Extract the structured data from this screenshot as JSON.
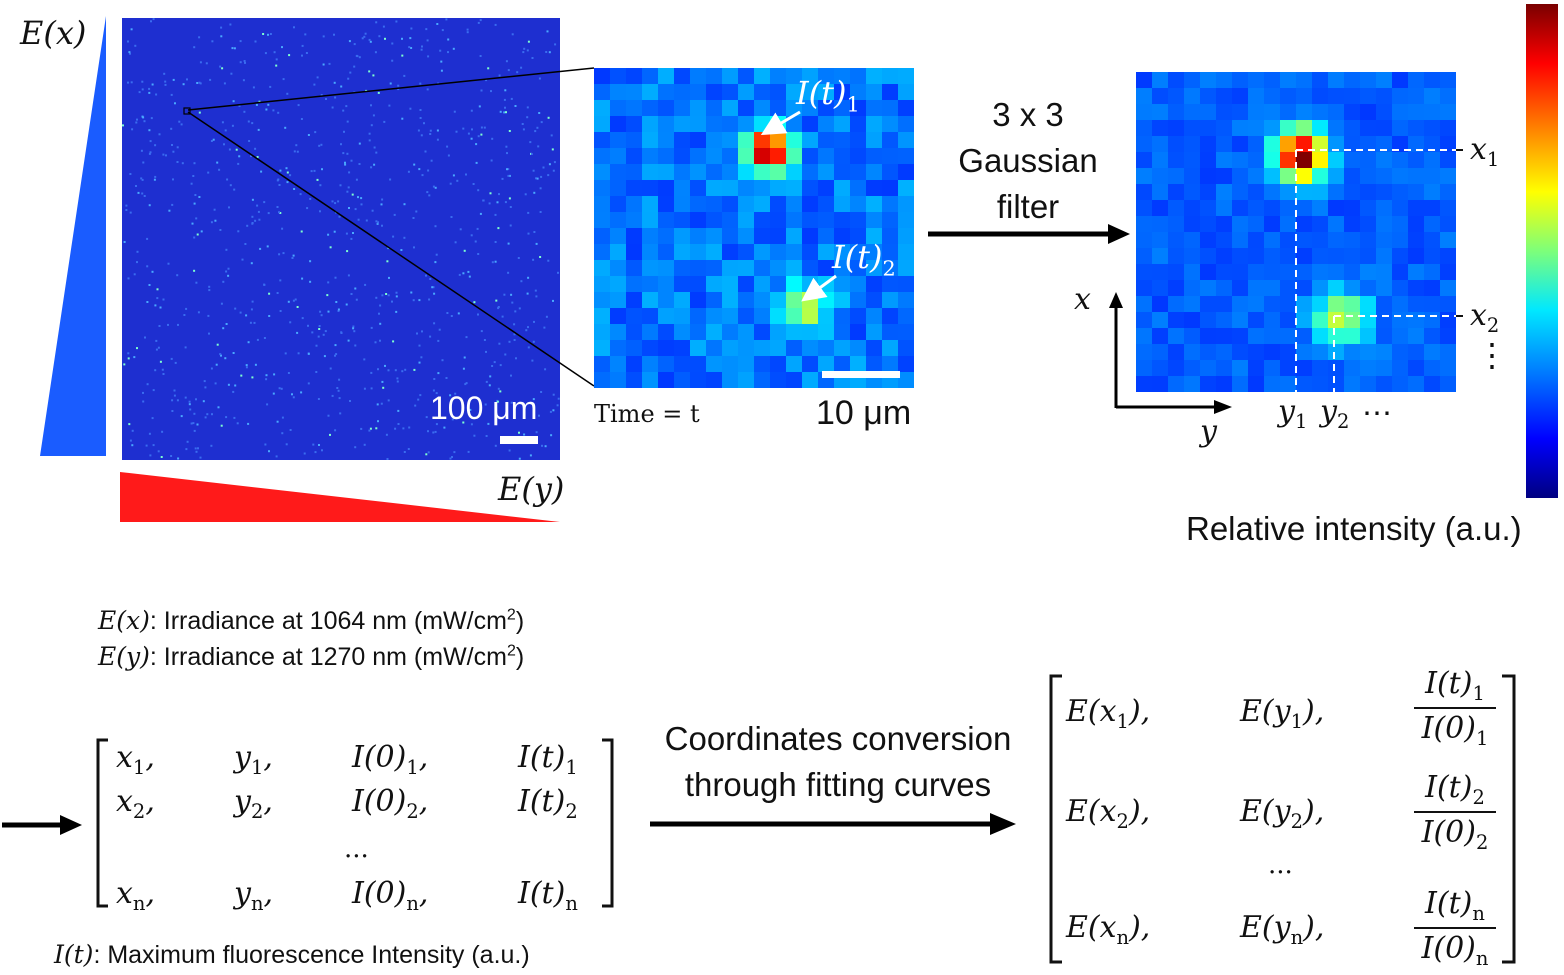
{
  "labels": {
    "ex_axis": "E(x)",
    "ey_axis": "E(y)",
    "scale_100": "100 μm",
    "time_label": "Time = t",
    "scale_10": "10 μm",
    "peak1": "I(t)",
    "peak1_sub": "1",
    "peak2": "I(t)",
    "peak2_sub": "2",
    "filter_line1": "3 x 3",
    "filter_line2": "Gaussian",
    "filter_line3": "filter",
    "axis_x": "x",
    "axis_y": "y",
    "x1": "x",
    "x1_sub": "1",
    "x2": "x",
    "x2_sub": "2",
    "y1": "y",
    "y1_sub": "1",
    "y2": "y",
    "y2_sub": "2",
    "dots_h": "⋯",
    "dots_v": "⋮",
    "colorbar_label": "Relative intensity (a.u.)"
  },
  "legend": {
    "ex_sym": "E(x)",
    "ex_text": ": Irradiance at 1064 nm (mW/cm",
    "ey_sym": "E(y)",
    "ey_text": ": Irradiance at 1270 nm (mW/cm",
    "sup2": "2",
    "close": ")",
    "it_sym": "I(t)",
    "it_text": ": Maximum fluorescence Intensity (a.u.)"
  },
  "conversion": {
    "line1": "Coordinates conversion",
    "line2": "through fitting curves"
  },
  "matrix_left": {
    "rows": [
      [
        "x",
        "1",
        "y",
        "1",
        "I(0)",
        "1",
        "I(t)",
        "1"
      ],
      [
        "x",
        "2",
        "y",
        "2",
        "I(0)",
        "2",
        "I(t)",
        "2"
      ],
      [
        "x",
        "n",
        "y",
        "n",
        "I(0)",
        "n",
        "I(t)",
        "n"
      ]
    ],
    "ellipsis": "..."
  },
  "matrix_right": {
    "rows": [
      [
        "E(x",
        "1",
        "E(y",
        "1",
        "I(t)",
        "1",
        "I(0)",
        "1"
      ],
      [
        "E(x",
        "2",
        "E(y",
        "2",
        "I(t)",
        "2",
        "I(0)",
        "2"
      ],
      [
        "E(x",
        "n",
        "E(y",
        "n",
        "I(t)",
        "n",
        "I(0)",
        "n"
      ]
    ],
    "ellipsis": "..."
  },
  "colors": {
    "blue_wedge": "#1a5cff",
    "red_wedge": "#ff1a1a",
    "map_background": "#1e2fd0",
    "arrow": "#000000"
  }
}
